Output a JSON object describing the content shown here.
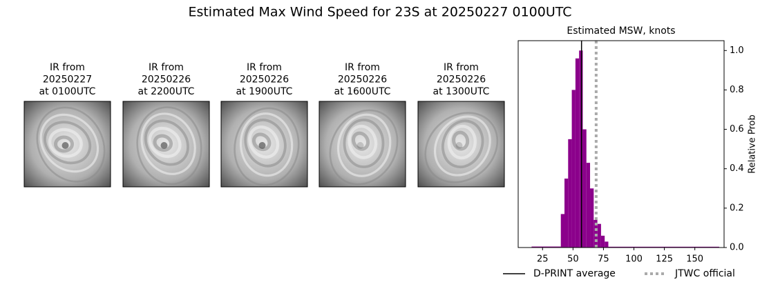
{
  "title": "Estimated Max Wind Speed for 23S at 20250227 0100UTC",
  "images": [
    {
      "title_lines": [
        "IR from",
        "20250227",
        "at 0100UTC"
      ]
    },
    {
      "title_lines": [
        "IR from",
        "20250226",
        "at 2200UTC"
      ]
    },
    {
      "title_lines": [
        "IR from",
        "20250226",
        "at 1900UTC"
      ]
    },
    {
      "title_lines": [
        "IR from",
        "20250226",
        "at 1600UTC"
      ]
    },
    {
      "title_lines": [
        "IR from",
        "20250226",
        "at 1300UTC"
      ]
    }
  ],
  "chart_data": {
    "type": "histogram",
    "title": "Estimated MSW, knots",
    "y_label": "Relative Prob",
    "bins": [
      16,
      40,
      43,
      46,
      49,
      52,
      55,
      58,
      61,
      64,
      67,
      70,
      73,
      76,
      79,
      170
    ],
    "values": [
      0.005,
      0.17,
      0.35,
      0.55,
      0.8,
      0.96,
      1.0,
      0.6,
      0.43,
      0.3,
      0.14,
      0.12,
      0.06,
      0.03,
      0.004
    ],
    "color": "#8b008b",
    "xlim": [
      5,
      174
    ],
    "xticks": [
      25,
      50,
      75,
      100,
      125,
      150
    ],
    "ylim": [
      0,
      1.05
    ],
    "yticks": [
      {
        "value": 0,
        "label": "0.0"
      },
      0.2,
      0.4,
      0.6,
      0.8,
      {
        "value": 1,
        "label": "1.0"
      }
    ],
    "lines": [
      {
        "name": "D-PRINT average",
        "value": 57,
        "color": "#000000",
        "style": "solid"
      },
      {
        "name": "JTWC official",
        "value": 69,
        "color": "#aaaaaa",
        "style": "dotted"
      }
    ]
  }
}
